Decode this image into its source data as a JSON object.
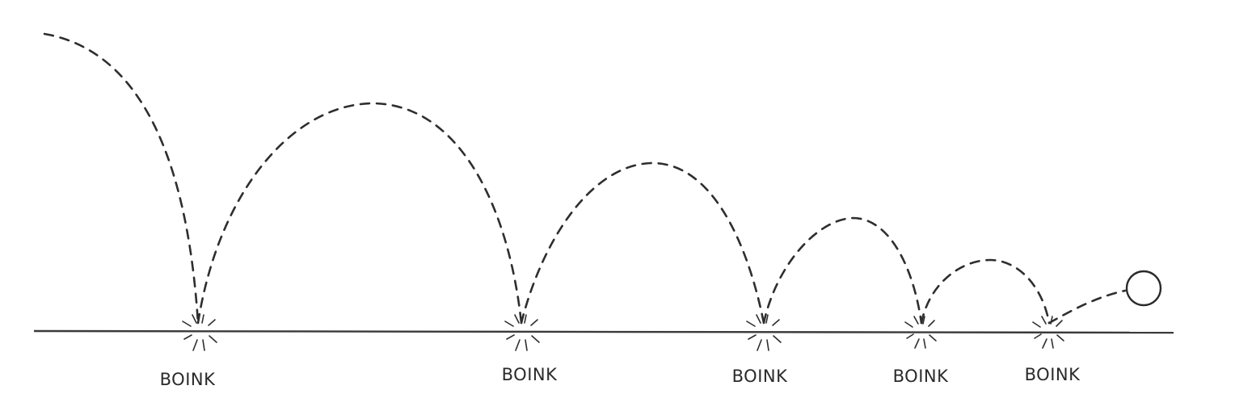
{
  "labels": {
    "bounce_1": "BOINK",
    "bounce_2": "BOINK",
    "bounce_3": "BOINK",
    "bounce_4": "BOINK",
    "bounce_5": "BOINK"
  },
  "colors": {
    "ink": "#2e2e2e",
    "paper": "#ffffff"
  }
}
